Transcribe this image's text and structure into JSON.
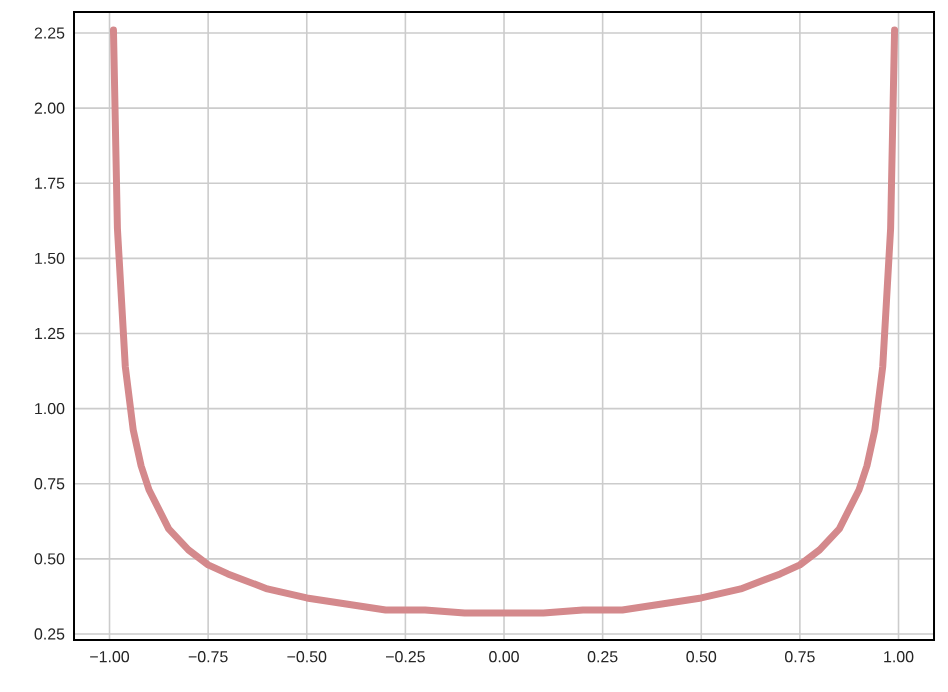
{
  "chart_data": {
    "type": "line",
    "color": "#d4898c",
    "x": [
      -0.99,
      -0.98,
      -0.96,
      -0.94,
      -0.92,
      -0.9,
      -0.85,
      -0.8,
      -0.75,
      -0.7,
      -0.6,
      -0.5,
      -0.4,
      -0.3,
      -0.2,
      -0.1,
      0,
      0.1,
      0.2,
      0.3,
      0.4,
      0.5,
      0.6,
      0.7,
      0.75,
      0.8,
      0.85,
      0.9,
      0.92,
      0.94,
      0.96,
      0.98,
      0.99
    ],
    "values": [
      2.26,
      1.6,
      1.14,
      0.93,
      0.81,
      0.73,
      0.6,
      0.53,
      0.48,
      0.45,
      0.4,
      0.37,
      0.35,
      0.33,
      0.33,
      0.32,
      0.32,
      0.32,
      0.33,
      0.33,
      0.35,
      0.37,
      0.4,
      0.45,
      0.48,
      0.53,
      0.6,
      0.73,
      0.81,
      0.93,
      1.14,
      1.6,
      2.26
    ],
    "xlim": [
      -1.09,
      1.09
    ],
    "ylim": [
      0.23,
      2.32
    ],
    "xticks": [
      {
        "value": -1,
        "label": "−1.00"
      },
      {
        "value": -0.75,
        "label": "−0.75"
      },
      {
        "value": -0.5,
        "label": "−0.50"
      },
      {
        "value": -0.25,
        "label": "−0.25"
      },
      {
        "value": 0,
        "label": "0.00"
      },
      {
        "value": 0.25,
        "label": "0.25"
      },
      {
        "value": 0.5,
        "label": "0.50"
      },
      {
        "value": 0.75,
        "label": "0.75"
      },
      {
        "value": 1,
        "label": "1.00"
      }
    ],
    "yticks": [
      {
        "value": 0.25,
        "label": "0.25"
      },
      {
        "value": 0.5,
        "label": "0.50"
      },
      {
        "value": 0.75,
        "label": "0.75"
      },
      {
        "value": 1,
        "label": "1.00"
      },
      {
        "value": 1.25,
        "label": "1.25"
      },
      {
        "value": 1.5,
        "label": "1.50"
      },
      {
        "value": 1.75,
        "label": "1.75"
      },
      {
        "value": 2,
        "label": "2.00"
      },
      {
        "value": 2.25,
        "label": "2.25"
      }
    ],
    "grid": true,
    "line_style": "solid"
  }
}
